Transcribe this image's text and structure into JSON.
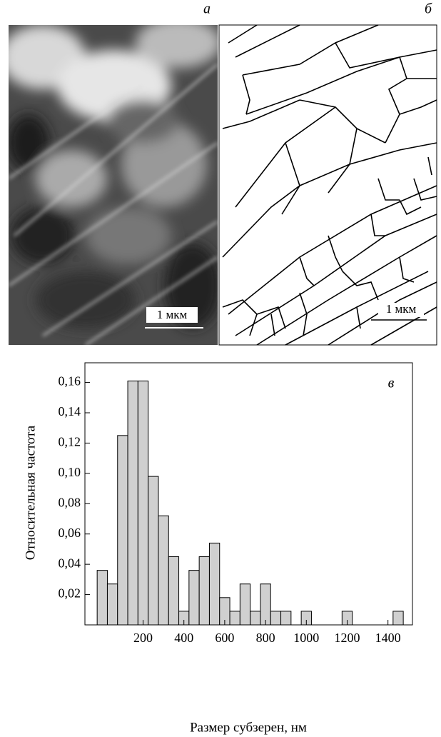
{
  "panels": [
    {
      "label": "а",
      "scale_bar": "1 мкм"
    },
    {
      "label": "б",
      "scale_bar": "1 мкм"
    }
  ],
  "chart_data": {
    "type": "histogram",
    "panel_label": "в",
    "x_label": "Размер субзерен, нм",
    "y_label": "Относительная частота",
    "bins": [
      -25,
      25,
      75,
      125,
      175,
      225,
      275,
      325,
      375,
      425,
      475,
      525,
      575,
      625,
      675,
      725,
      775,
      825,
      875,
      925,
      975,
      1025,
      1075,
      1125,
      1175,
      1225,
      1275,
      1325,
      1375,
      1425,
      1475
    ],
    "values": [
      0.036,
      0.027,
      0.125,
      0.161,
      0.161,
      0.098,
      0.072,
      0.045,
      0.009,
      0.036,
      0.045,
      0.054,
      0.018,
      0.009,
      0.027,
      0.009,
      0.027,
      0.009,
      0.009,
      0,
      0.009,
      0,
      0,
      0,
      0.009,
      0,
      0,
      0,
      0,
      0.009
    ],
    "color": "#d0d0d0",
    "xlim": [
      -85,
      1520
    ],
    "xticks": [
      200,
      400,
      600,
      800,
      1000,
      1200,
      1400
    ],
    "ylim": [
      0,
      0.173
    ],
    "yticks": [
      {
        "value": 0.02,
        "label": "0,02"
      },
      {
        "value": 0.04,
        "label": "0,04"
      },
      {
        "value": 0.06,
        "label": "0,06"
      },
      {
        "value": 0.08,
        "label": "0,08"
      },
      {
        "value": 0.1,
        "label": "0,10"
      },
      {
        "value": 0.12,
        "label": "0,12"
      },
      {
        "value": 0.14,
        "label": "0,14"
      },
      {
        "value": 0.16,
        "label": "0,16"
      }
    ],
    "grid": false
  }
}
